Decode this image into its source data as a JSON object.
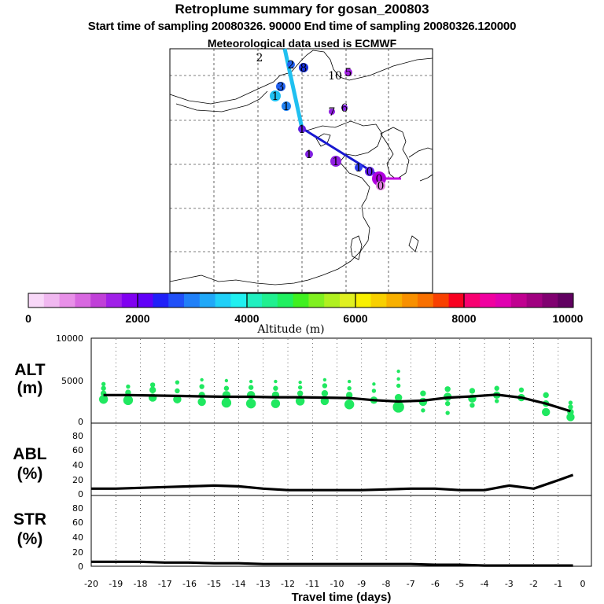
{
  "header": {
    "title": "Retroplume summary for gosan_200803",
    "subtitle": "Start time of sampling 20080326. 90000     End time of sampling 20080326.120000",
    "met_line": "Meteorological data used is ECMWF"
  },
  "colorbar": {
    "ticks": [
      "0",
      "2000",
      "4000",
      "6000",
      "8000",
      "10000"
    ],
    "label": "Altitude (m)",
    "colors": [
      "#f8d8f8",
      "#f0b8f0",
      "#e890e8",
      "#d868e0",
      "#c040d8",
      "#a020e8",
      "#8000f0",
      "#6000f8",
      "#2020f8",
      "#2050f8",
      "#2080f8",
      "#20a8f8",
      "#20d0f8",
      "#20f0f0",
      "#20f0c0",
      "#20f090",
      "#20f060",
      "#40f020",
      "#80f020",
      "#b0f020",
      "#e0f020",
      "#f8f000",
      "#f8d000",
      "#f8b000",
      "#f89000",
      "#f87000",
      "#f84000",
      "#f80020",
      "#f80070",
      "#f000a0",
      "#e000b0",
      "#c00090",
      "#a00080",
      "#800070",
      "#600060"
    ]
  },
  "map": {
    "labels": [
      "2",
      "2",
      "8",
      "10",
      "5",
      "3",
      "1",
      "1",
      "7",
      "6",
      "1",
      "1",
      "1",
      "1",
      "0",
      "0",
      "0"
    ],
    "plume_colors": {
      "cyan": "#20c0f0",
      "blue": "#1818d0",
      "magenta": "#c000e0"
    }
  },
  "axis": {
    "xlabel": "Travel time (days)",
    "xticks": [
      "-20",
      "-19",
      "-18",
      "-17",
      "-16",
      "-15",
      "-14",
      "-13",
      "-12",
      "-11",
      "-10",
      "-9",
      "-8",
      "-7",
      "-6",
      "-5",
      "-4",
      "-3",
      "-2",
      "-1",
      "0"
    ]
  },
  "panels": {
    "alt": {
      "name": "ALT",
      "unit": "(m)",
      "yticks": [
        "10000",
        "5000",
        "0"
      ]
    },
    "abl": {
      "name": "ABL",
      "unit": "(%)",
      "yticks": [
        "80",
        "60",
        "40",
        "20",
        "0"
      ]
    },
    "str": {
      "name": "STR",
      "unit": "(%)",
      "yticks": [
        "80",
        "60",
        "40",
        "20",
        "0"
      ]
    }
  },
  "chart_data": [
    {
      "type": "line",
      "title": "ALT (m)",
      "xlabel": "Travel time (days)",
      "ylabel": "Altitude (m)",
      "ylim": [
        0,
        10000
      ],
      "x": [
        -19.5,
        -18.5,
        -17.5,
        -16.5,
        -15.5,
        -14.5,
        -13.5,
        -12.5,
        -11.5,
        -10.5,
        -9.5,
        -8.5,
        -7.5,
        -6.5,
        -5.5,
        -4.5,
        -3.5,
        -2.5,
        -1.5,
        -0.5
      ],
      "values": [
        3300,
        3300,
        3250,
        3200,
        3150,
        3100,
        3100,
        3050,
        3050,
        3000,
        2950,
        2700,
        2550,
        2650,
        3000,
        3150,
        3350,
        3000,
        2300,
        1400
      ],
      "scatter_color": "#20e860",
      "scatter_points": [
        [
          -19.5,
          2800,
          9
        ],
        [
          -19.5,
          3500,
          5
        ],
        [
          -19.5,
          4100,
          4
        ],
        [
          -19.5,
          4600,
          3
        ],
        [
          -18.5,
          2700,
          10
        ],
        [
          -18.5,
          3600,
          5
        ],
        [
          -18.5,
          4300,
          3
        ],
        [
          -17.5,
          3000,
          8
        ],
        [
          -17.5,
          3900,
          6
        ],
        [
          -17.5,
          4500,
          4
        ],
        [
          -16.5,
          2800,
          8
        ],
        [
          -16.5,
          3800,
          4
        ],
        [
          -16.5,
          4800,
          3
        ],
        [
          -15.5,
          2500,
          8
        ],
        [
          -15.5,
          3300,
          6
        ],
        [
          -15.5,
          4300,
          4
        ],
        [
          -15.5,
          5100,
          2
        ],
        [
          -14.5,
          2400,
          10
        ],
        [
          -14.5,
          3300,
          8
        ],
        [
          -14.5,
          4100,
          4
        ],
        [
          -14.5,
          5000,
          2
        ],
        [
          -13.5,
          2300,
          10
        ],
        [
          -13.5,
          3300,
          8
        ],
        [
          -13.5,
          4200,
          4
        ],
        [
          -13.5,
          4900,
          2
        ],
        [
          -12.5,
          2300,
          9
        ],
        [
          -12.5,
          3300,
          7
        ],
        [
          -12.5,
          4100,
          4
        ],
        [
          -12.5,
          4900,
          2
        ],
        [
          -11.5,
          2600,
          9
        ],
        [
          -11.5,
          3500,
          5
        ],
        [
          -11.5,
          4200,
          3
        ],
        [
          -11.5,
          4800,
          2
        ],
        [
          -10.5,
          2600,
          8
        ],
        [
          -10.5,
          3500,
          6
        ],
        [
          -10.5,
          4400,
          4
        ],
        [
          -10.5,
          5100,
          2
        ],
        [
          -9.5,
          2200,
          10
        ],
        [
          -9.5,
          3300,
          6
        ],
        [
          -9.5,
          4100,
          3
        ],
        [
          -9.5,
          4900,
          2
        ],
        [
          -8.5,
          2700,
          7
        ],
        [
          -8.5,
          3800,
          3
        ],
        [
          -8.5,
          4600,
          2
        ],
        [
          -7.5,
          1900,
          12
        ],
        [
          -7.5,
          3000,
          7
        ],
        [
          -7.5,
          4400,
          3
        ],
        [
          -7.5,
          5200,
          2
        ],
        [
          -7.5,
          6100,
          2
        ],
        [
          -6.5,
          2500,
          8
        ],
        [
          -6.5,
          3500,
          5
        ],
        [
          -6.5,
          1500,
          3
        ],
        [
          -5.5,
          3100,
          8
        ],
        [
          -5.5,
          4000,
          5
        ],
        [
          -5.5,
          2300,
          4
        ],
        [
          -5.5,
          1200,
          3
        ],
        [
          -4.5,
          2900,
          8
        ],
        [
          -4.5,
          3800,
          5
        ],
        [
          -4.5,
          2100,
          4
        ],
        [
          -3.5,
          3300,
          7
        ],
        [
          -3.5,
          4100,
          4
        ],
        [
          -3.5,
          2600,
          3
        ],
        [
          -2.5,
          3000,
          7
        ],
        [
          -2.5,
          3900,
          4
        ],
        [
          -1.5,
          1300,
          8
        ],
        [
          -1.5,
          2300,
          6
        ],
        [
          -1.5,
          3300,
          5
        ],
        [
          -0.5,
          700,
          8
        ],
        [
          -0.5,
          1300,
          6
        ],
        [
          -0.5,
          1900,
          4
        ],
        [
          -0.5,
          2400,
          3
        ]
      ]
    },
    {
      "type": "line",
      "title": "ABL (%)",
      "xlabel": "Travel time (days)",
      "ylabel": "ABL (%)",
      "ylim": [
        0,
        95
      ],
      "x": [
        -20,
        -19,
        -18,
        -17,
        -16,
        -15,
        -14,
        -13,
        -12,
        -11,
        -10,
        -9,
        -8,
        -7,
        -6,
        -5,
        -4,
        -3,
        -2,
        -1,
        -0.4
      ],
      "values": [
        9,
        9,
        10,
        11,
        12,
        13,
        12,
        9,
        7,
        7,
        7,
        7,
        8,
        9,
        9,
        7,
        7,
        13,
        9,
        20,
        27
      ]
    },
    {
      "type": "line",
      "title": "STR (%)",
      "xlabel": "Travel time (days)",
      "ylabel": "STR (%)",
      "ylim": [
        0,
        95
      ],
      "x": [
        -20,
        -19,
        -18,
        -17,
        -16,
        -15,
        -14,
        -13,
        -12,
        -11,
        -10,
        -9,
        -8,
        -7,
        -6,
        -5,
        -4,
        -3,
        -2,
        -1,
        -0.4
      ],
      "values": [
        6,
        6,
        6,
        5,
        5,
        4,
        4,
        3,
        3,
        3,
        3,
        3,
        3,
        3,
        2,
        2,
        1,
        1,
        1,
        1,
        1
      ]
    }
  ]
}
